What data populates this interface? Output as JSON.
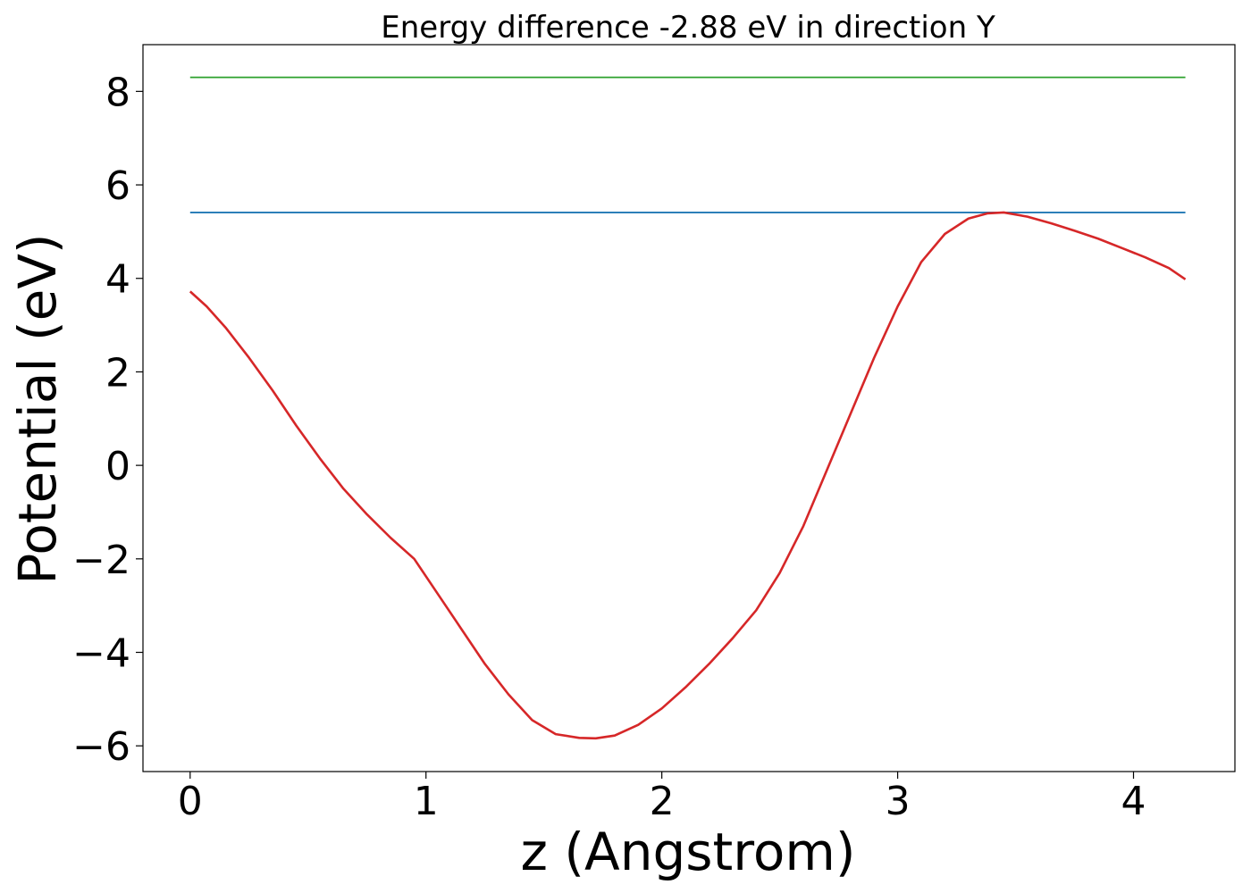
{
  "chart_data": {
    "type": "line",
    "title": "Energy difference -2.88 eV in direction Y",
    "xlabel": "z (Angstrom)",
    "ylabel": "Potential (eV)",
    "xlim": [
      -0.2,
      4.43
    ],
    "ylim": [
      -6.55,
      9.0
    ],
    "xticks": [
      0,
      1,
      2,
      3,
      4
    ],
    "xtick_labels": [
      "0",
      "1",
      "2",
      "3",
      "4"
    ],
    "yticks": [
      -6,
      -4,
      -2,
      0,
      2,
      4,
      6,
      8
    ],
    "ytick_labels": [
      "−6",
      "−4",
      "−2",
      "0",
      "2",
      "4",
      "6",
      "8"
    ],
    "grid": false,
    "series": [
      {
        "color": "#1f77b4",
        "x": [
          0,
          4.22
        ],
        "y": [
          5.41,
          5.41
        ]
      },
      {
        "color": "#2ca02c",
        "x": [
          0,
          4.22
        ],
        "y": [
          8.3,
          8.3
        ]
      },
      {
        "color": "#d62728",
        "x": [
          0.0,
          0.07,
          0.15,
          0.25,
          0.35,
          0.45,
          0.55,
          0.65,
          0.75,
          0.85,
          0.95,
          1.05,
          1.15,
          1.25,
          1.35,
          1.45,
          1.55,
          1.65,
          1.72,
          1.8,
          1.9,
          2.0,
          2.1,
          2.2,
          2.3,
          2.4,
          2.5,
          2.6,
          2.7,
          2.8,
          2.9,
          3.0,
          3.1,
          3.2,
          3.3,
          3.38,
          3.45,
          3.55,
          3.65,
          3.75,
          3.85,
          3.95,
          4.05,
          4.15,
          4.22
        ],
        "y": [
          3.72,
          3.4,
          2.95,
          2.3,
          1.6,
          0.85,
          0.15,
          -0.5,
          -1.05,
          -1.55,
          -2.0,
          -2.75,
          -3.5,
          -4.25,
          -4.9,
          -5.45,
          -5.75,
          -5.83,
          -5.84,
          -5.78,
          -5.55,
          -5.2,
          -4.75,
          -4.25,
          -3.7,
          -3.1,
          -2.3,
          -1.3,
          -0.1,
          1.1,
          2.3,
          3.4,
          4.35,
          4.95,
          5.28,
          5.39,
          5.41,
          5.32,
          5.18,
          5.02,
          4.85,
          4.65,
          4.45,
          4.22,
          3.98
        ]
      }
    ]
  }
}
